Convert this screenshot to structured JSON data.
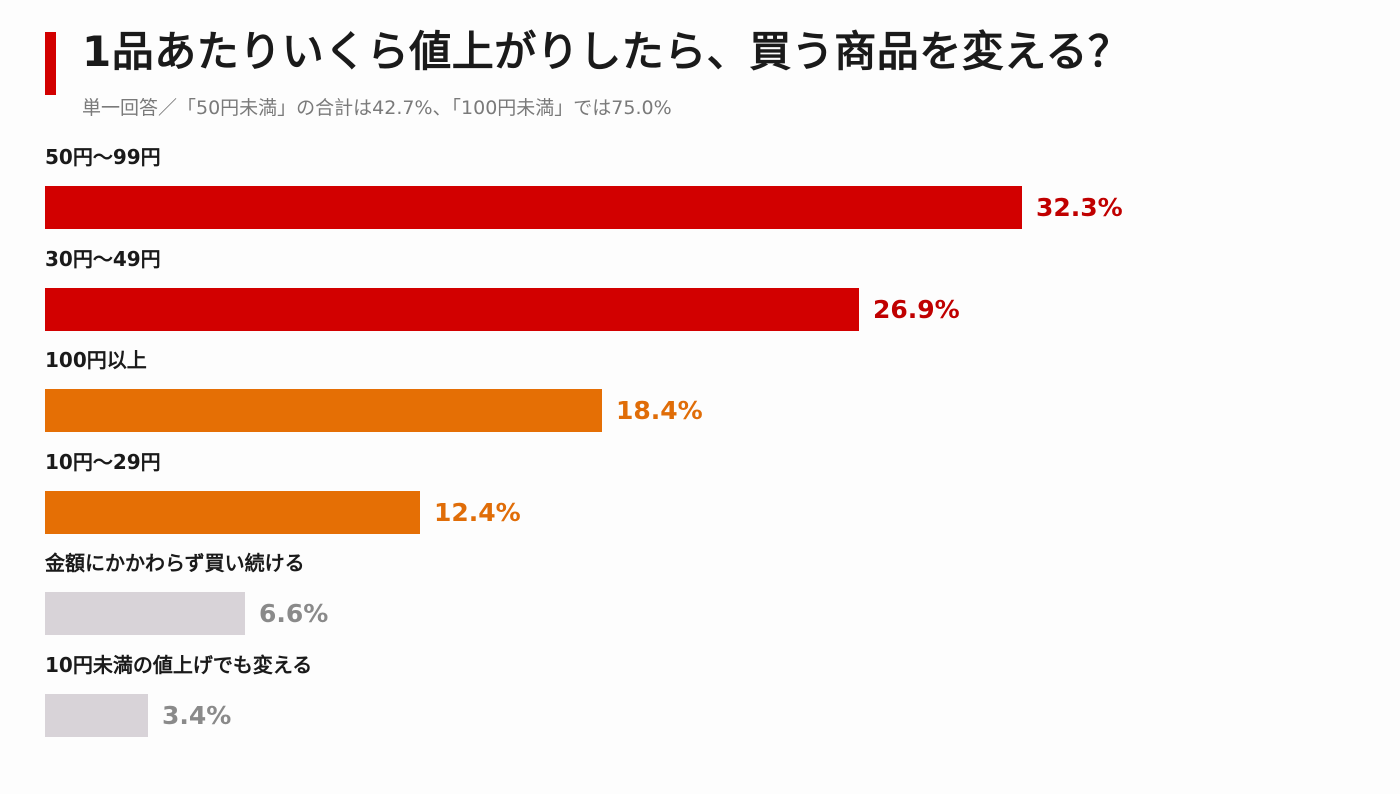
{
  "chart_data": {
    "type": "bar",
    "orientation": "horizontal",
    "title": "1品あたりいくら値上がりしたら、買う商品を変える？",
    "subtitle": "単一回答／「50円未満」の合計は42.7%、「100円未満」では75.0%",
    "categories": [
      "50円〜99円",
      "30円〜49円",
      "100円以上",
      "10円〜29円",
      "金額にかかわらず買い続ける",
      "10円未満の値上げでも変える"
    ],
    "values": [
      32.3,
      26.9,
      18.4,
      12.4,
      6.6,
      3.4
    ],
    "value_labels": [
      "32.3%",
      "26.9%",
      "18.4%",
      "12.4%",
      "6.6%",
      "3.4%"
    ],
    "bar_colors": [
      "#d20000",
      "#d20000",
      "#e56f05",
      "#e56f05",
      "#d8d3d8",
      "#d8d3d8"
    ],
    "label_colors": [
      "#c00000",
      "#c00000",
      "#e06d08",
      "#e06d08",
      "#8a8a8a",
      "#8a8a8a"
    ],
    "unit": "%",
    "xlim": [
      0,
      32.3
    ],
    "grid": false,
    "legend": "none"
  },
  "colors": {
    "accent": "#d20000",
    "title_text": "#1a1a1a",
    "subtitle_text": "#7a7a7a",
    "background": "#fdfdfd"
  }
}
